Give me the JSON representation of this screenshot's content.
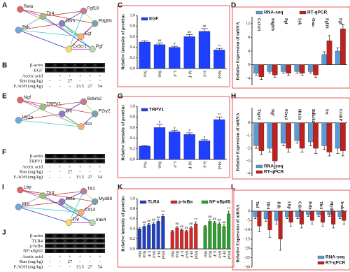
{
  "panel_labels": [
    "A",
    "B",
    "C",
    "D",
    "E",
    "F",
    "G",
    "H",
    "I",
    "J",
    "K",
    "L"
  ],
  "networks": [
    {
      "nodes": [
        "Rela",
        "Tlr4",
        "Syk",
        "Egf",
        "Osm",
        "Fgf18",
        "Pdgfrb",
        "Cx3cr1",
        "Pgf"
      ]
    },
    {
      "nodes": [
        "Ngf",
        "TRPV1",
        "Htr2a",
        "Il1b",
        "Src",
        "Bdkrb2",
        "P2ry2"
      ]
    },
    {
      "nodes": [
        "Lbp",
        "Tlr4",
        "Il1b",
        "Cd14",
        "Rela",
        "Tlr2",
        "Myd88",
        "Tnf",
        "Irak4"
      ]
    }
  ],
  "blots": [
    {
      "bands": [
        "β-actin",
        "EGF"
      ],
      "treatments": [
        {
          "label": "Acetic acid",
          "values": [
            "-",
            "+",
            "+",
            "+",
            "+",
            "+"
          ]
        },
        {
          "label": "Ran (mg/kg)",
          "values": [
            "-",
            "-",
            "27",
            "-",
            "-",
            "-"
          ]
        },
        {
          "label": "F.AOH (mg/kg)",
          "values": [
            "-",
            "-",
            "-",
            "13.5",
            "27",
            "54"
          ]
        }
      ]
    },
    {
      "bands": [
        "β-actin",
        "TRPV1"
      ],
      "treatments": [
        {
          "label": "Acetic acid",
          "values": [
            "-",
            "+",
            "+",
            "+",
            "+",
            "+"
          ]
        },
        {
          "label": "Ran (mg/kg)",
          "values": [
            "-",
            "-",
            "27",
            "-",
            "-",
            "-"
          ]
        },
        {
          "label": "F.AOH (mg/kg)",
          "values": [
            "-",
            "-",
            "-",
            "13.5",
            "27",
            "54"
          ]
        }
      ]
    },
    {
      "bands": [
        "β-actin",
        "TLR4",
        "p-IκBα",
        "NF-κBp65"
      ],
      "treatments": [
        {
          "label": "Acetic acid",
          "values": [
            "-",
            "+",
            "+",
            "+",
            "+",
            "+"
          ]
        },
        {
          "label": "Ran (mg/kg)",
          "values": [
            "-",
            "-",
            "27",
            "-",
            "-",
            "-"
          ]
        },
        {
          "label": "F.AOH (mg/kg)",
          "values": [
            "-",
            "-",
            "-",
            "13.5",
            "27",
            "54"
          ]
        }
      ]
    }
  ],
  "chart_data": [
    {
      "type": "bar",
      "bar_layout": "grouped",
      "ylabel": "Relative intensity of proteins",
      "categories": [
        "Nor",
        "Ran",
        "L-F",
        "M-F",
        "H-F",
        "Mod"
      ],
      "series": [
        {
          "name": "EGF",
          "color": "#1f3fff",
          "values": [
            0.5,
            0.45,
            0.4,
            0.6,
            0.7,
            0.35
          ],
          "errors": [
            0.02,
            0.03,
            0.02,
            0.04,
            0.05,
            0.03
          ],
          "annotations": [
            null,
            "##",
            "#",
            "##",
            "##",
            "**"
          ]
        }
      ],
      "ylim": [
        0,
        1.0
      ],
      "yticks": [
        {
          "value": 0,
          "label": "0.0"
        },
        0.2,
        0.4,
        0.6,
        0.8,
        {
          "value": 1,
          "label": "1.0"
        }
      ],
      "legend": "upper left",
      "xaxis_position": "bottom"
    },
    {
      "type": "bar",
      "bar_layout": "grouped",
      "ylabel": "Relative Expression of mRNA",
      "categories": [
        "Cx3cr1",
        "Pdgfrb",
        "Pgf",
        "Syk",
        "Osm",
        "Fgf18",
        "Egf"
      ],
      "series": [
        {
          "name": "RNA-seq",
          "color": "#5b9bd5",
          "values": [
            -2.5,
            -2,
            -2,
            -2,
            -2,
            3,
            4
          ],
          "errors": [
            0.5,
            0.4,
            0.4,
            0.5,
            0.4,
            0.8,
            0.9
          ]
        },
        {
          "name": "RT-qPCR",
          "color": "#c0201e",
          "values": [
            -3.5,
            -3,
            -2.5,
            -2.5,
            -3,
            7,
            10.5
          ],
          "errors": [
            0.8,
            0.6,
            0.6,
            0.5,
            0.7,
            1.5,
            1.2
          ]
        }
      ],
      "ylim": [
        -6,
        14
      ],
      "yticks": [
        -4,
        0,
        4,
        8,
        12
      ],
      "legend": "top",
      "xaxis_position": "top"
    },
    {
      "type": "bar",
      "bar_layout": "grouped",
      "ylabel": "Relative intensity of proteins",
      "categories": [
        "Nor",
        "Ran",
        "L-F",
        "M-F",
        "H-F",
        "Mod"
      ],
      "series": [
        {
          "name": "TRPV1",
          "color": "#1f3fff",
          "values": [
            0.25,
            0.6,
            0.52,
            0.47,
            0.35,
            0.75
          ],
          "errors": [
            0.01,
            0.06,
            0.03,
            0.03,
            0.02,
            0.05
          ],
          "annotations": [
            null,
            "#",
            "#",
            "#",
            "#",
            "**"
          ]
        }
      ],
      "ylim": [
        0,
        1.0
      ],
      "yticks": [
        {
          "value": 0,
          "label": "0.0"
        },
        0.2,
        0.4,
        0.6,
        0.8,
        {
          "value": 1,
          "label": "1.0"
        }
      ],
      "legend": "upper left",
      "xaxis_position": "bottom"
    },
    {
      "type": "bar",
      "bar_layout": "grouped",
      "ylabel": "Relative Expression of mRNA",
      "categories": [
        "Trpv1",
        "Ngf",
        "P2ry2",
        "Htr2a",
        "Bdkrb2",
        "Src",
        "CGRP"
      ],
      "series": [
        {
          "name": "RNA-seq",
          "color": "#5b9bd5",
          "values": [
            -1.8,
            -2,
            -1.6,
            -1.4,
            -1.5,
            -1.8,
            -2
          ],
          "errors": [
            0.2,
            0.3,
            0.2,
            0.2,
            0.3,
            0.3,
            0.4
          ]
        },
        {
          "name": "RT-qPCR",
          "color": "#c0201e",
          "values": [
            -2.2,
            -3,
            -2,
            -2,
            -2,
            -2.3,
            -2.2
          ],
          "errors": [
            0.3,
            0.6,
            0.3,
            0.3,
            0.4,
            0.3,
            0.4
          ]
        }
      ],
      "ylim": [
        -4.2,
        1.2
      ],
      "yticks": [
        -4,
        -3,
        -2,
        -1,
        0
      ],
      "legend": "lower left",
      "xaxis_position": "top"
    },
    {
      "type": "bar",
      "bar_layout": "sequential",
      "ylabel": "Relative intensity of proteins",
      "categories": [
        "Nor",
        "Ran",
        "L-F",
        "M-F",
        "H-F",
        "Mod"
      ],
      "series": [
        {
          "name": "TLR4",
          "color": "#1f3fbf",
          "values": [
            0.4,
            0.45,
            0.48,
            0.5,
            0.55,
            0.65
          ],
          "errors": [
            0.02,
            0.03,
            0.03,
            0.03,
            0.03,
            0.04
          ],
          "annotations": [
            null,
            "##",
            "##",
            "##",
            "##",
            "**"
          ]
        },
        {
          "name": "p-IκBα",
          "color": "#d62728",
          "values": [
            0.35,
            0.42,
            0.38,
            0.35,
            0.42,
            0.5
          ],
          "errors": [
            0.02,
            0.03,
            0.02,
            0.02,
            0.03,
            0.04
          ],
          "annotations": [
            null,
            "##",
            "##",
            "##",
            "##",
            "**"
          ]
        },
        {
          "name": "NF-κBp65",
          "color": "#2ca02c",
          "values": [
            0.45,
            0.55,
            0.52,
            0.5,
            0.45,
            0.7
          ],
          "errors": [
            0.02,
            0.04,
            0.03,
            0.03,
            0.03,
            0.05
          ],
          "annotations": [
            null,
            "##",
            "##",
            "##",
            "##",
            "**"
          ]
        }
      ],
      "ylim": [
        0,
        1.0
      ],
      "yticks": [
        {
          "value": 0,
          "label": "0.0"
        },
        0.2,
        0.4,
        0.6,
        0.8,
        {
          "value": 1,
          "label": "1.0"
        }
      ],
      "legend": "upper center",
      "xaxis_position": "bottom"
    },
    {
      "type": "bar",
      "bar_layout": "grouped",
      "ylabel": "Relative Expression of mRNA",
      "categories": [
        "Tnf",
        "Tlr4",
        "Il1b",
        "Lbp",
        "Cd14",
        "Rela",
        "Tlr2",
        "Myd88",
        "Irak4"
      ],
      "series": [
        {
          "name": "RNA-seq",
          "color": "#5b9bd5",
          "values": [
            -3,
            -4,
            -5,
            -3,
            -3,
            -2,
            -2,
            -2,
            -3
          ],
          "errors": [
            1,
            1.5,
            2,
            1,
            1,
            0.8,
            0.8,
            0.8,
            1
          ]
        },
        {
          "name": "RT-qPCR",
          "color": "#c0201e",
          "values": [
            -8,
            -10,
            -15,
            -6,
            -7,
            -5,
            -6,
            -7,
            -5
          ],
          "errors": [
            3,
            4,
            6,
            2,
            2,
            2,
            2,
            2,
            2
          ]
        }
      ],
      "ylim": [
        -30,
        6
      ],
      "yticks": [
        -30,
        -25,
        -20,
        -15,
        -10,
        -5,
        0
      ],
      "legend": "lower right",
      "xaxis_position": "top"
    }
  ]
}
